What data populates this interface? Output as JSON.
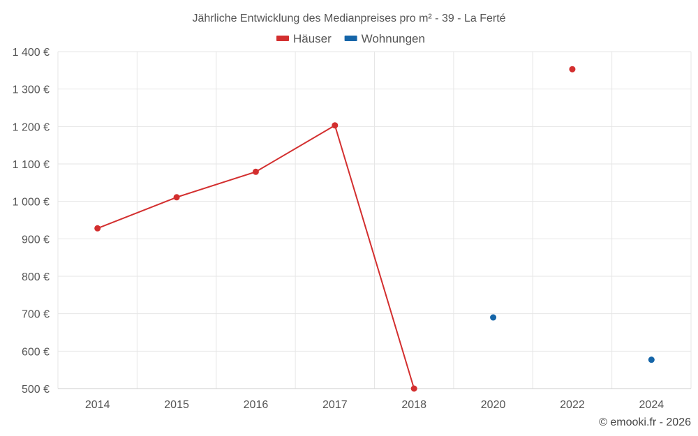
{
  "chart_data": {
    "type": "line",
    "title": "Jährliche Entwicklung des Medianpreises pro m² - 39 - La Ferté",
    "categories": [
      "2014",
      "2015",
      "2016",
      "2017",
      "2018",
      "2020",
      "2022",
      "2024"
    ],
    "series": [
      {
        "name": "Häuser",
        "color": "#d32f2f",
        "values": [
          928,
          1011,
          1079,
          1203,
          500,
          null,
          1353,
          null
        ]
      },
      {
        "name": "Wohnungen",
        "color": "#1565a8",
        "values": [
          null,
          null,
          null,
          null,
          null,
          690,
          null,
          577
        ]
      }
    ],
    "y_ticks": [
      "500 €",
      "600 €",
      "700 €",
      "800 €",
      "900 €",
      "1 000 €",
      "1 100 €",
      "1 200 €",
      "1 300 €",
      "1 400 €"
    ],
    "ylim": [
      500,
      1400
    ],
    "grid": true,
    "legend_position": "top-center"
  },
  "credit": "© emooki.fr - 2026"
}
